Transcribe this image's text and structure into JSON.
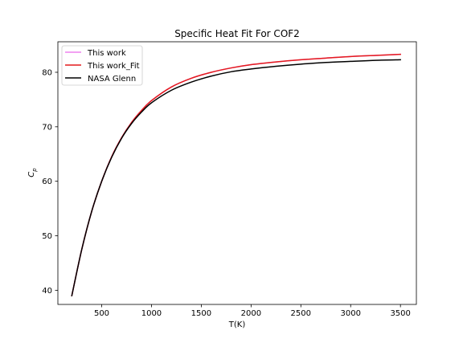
{
  "chart_data": {
    "type": "line",
    "title": "Specific Heat Fit For COF2",
    "xlabel": "T(K)",
    "ylabel": "C_p",
    "ylabel_main": "C",
    "ylabel_sub": "p",
    "xlim": [
      60,
      3660
    ],
    "ylim": [
      37.4,
      85.6
    ],
    "xticks": [
      500,
      1000,
      1500,
      2000,
      2500,
      3000,
      3500
    ],
    "yticks": [
      40,
      50,
      60,
      70,
      80
    ],
    "grid": false,
    "legend_position": "top-left",
    "series": [
      {
        "name": "This work",
        "color": "#ee82ee",
        "x": [
          200,
          300,
          400,
          500,
          600,
          700,
          800,
          900,
          1000,
          1200,
          1400,
          1600,
          1800,
          2000,
          2250,
          2500,
          2750,
          3000,
          3250,
          3500
        ],
        "y": [
          39.0,
          47.5,
          54.5,
          60.0,
          64.5,
          68.0,
          70.8,
          73.0,
          74.8,
          77.3,
          78.9,
          80.0,
          80.8,
          81.4,
          81.9,
          82.3,
          82.6,
          82.9,
          83.1,
          83.3
        ]
      },
      {
        "name": "This work_Fit",
        "color": "#e41a1c",
        "x": [
          200,
          300,
          400,
          500,
          600,
          700,
          800,
          900,
          1000,
          1200,
          1400,
          1600,
          1800,
          2000,
          2250,
          2500,
          2750,
          3000,
          3250,
          3500
        ],
        "y": [
          39.0,
          47.5,
          54.5,
          60.0,
          64.5,
          68.0,
          70.8,
          73.0,
          74.8,
          77.3,
          78.9,
          80.0,
          80.8,
          81.4,
          81.9,
          82.3,
          82.6,
          82.9,
          83.1,
          83.3
        ]
      },
      {
        "name": "NASA Glenn",
        "color": "#000000",
        "x": [
          200,
          300,
          400,
          500,
          600,
          700,
          800,
          900,
          1000,
          1200,
          1400,
          1600,
          1800,
          2000,
          2250,
          2500,
          2750,
          3000,
          3250,
          3500
        ],
        "y": [
          39.0,
          47.5,
          54.5,
          60.0,
          64.4,
          67.9,
          70.6,
          72.7,
          74.4,
          76.7,
          78.2,
          79.3,
          80.1,
          80.6,
          81.1,
          81.5,
          81.8,
          82.0,
          82.2,
          82.3
        ]
      }
    ]
  }
}
